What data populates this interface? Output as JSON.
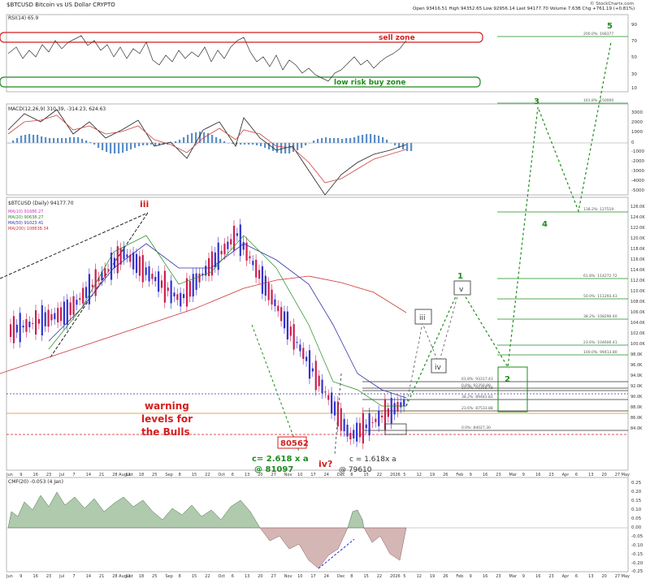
{
  "header": {
    "symbol": "$BTCUSD Bitcoin vs US Dollar  CRYPTO",
    "stats": "Open 93416.51  High 94352.65  Low 92956.14  Last 94177.70  Volume 7.63B  Chg +761.19 (+0.81%)",
    "watermark": "© StockCharts.com"
  },
  "rsi_panel": {
    "label": "RSI(14) 65.9",
    "ticks": [
      "90",
      "70",
      "50",
      "30",
      "10"
    ],
    "sell_zone": "sell zone",
    "buy_zone": "low risk buy zone"
  },
  "macd_panel": {
    "label": "MACD(12,26,9) 310.39, -314.23, 624.63",
    "ticks": [
      "3000",
      "2000",
      "1000",
      "0",
      "-1000",
      "-2000",
      "-3000",
      "-4000",
      "-5000"
    ]
  },
  "price_panel": {
    "label": "$BTCUSD (Daily) 94177.70",
    "ma_legend": [
      {
        "text": "MA(10) 91686.27",
        "color": "#cc33cc"
      },
      {
        "text": "MA(20) 90638.27",
        "color": "#228b22"
      },
      {
        "text": "MA(50) 91023.41",
        "color": "#3333aa"
      },
      {
        "text": "MA(200) 108838.34",
        "color": "#cc3333"
      }
    ],
    "ticks": [
      "126.0K",
      "124.0K",
      "122.0K",
      "120.0K",
      "118.0K",
      "116.0K",
      "114.0K",
      "112.0K",
      "110.0K",
      "108.0K",
      "106.0K",
      "104.0K",
      "102.0K",
      "100.0K",
      "98.0K",
      "96.0K",
      "94.0K",
      "92.0K",
      "90.0K",
      "88.0K",
      "86.0K",
      "84.0K"
    ],
    "fib_levels": [
      {
        "text": "200.0%: 168377",
        "y": 45
      },
      {
        "text": "161.8%: 150000",
        "y": 127
      },
      {
        "text": "138.2%: 127519",
        "y": 261
      },
      {
        "text": "61.8%: 114272.72",
        "y": 343
      },
      {
        "text": "50.0%: 111293.43",
        "y": 368
      },
      {
        "text": "38.2%: 108290.40",
        "y": 393
      },
      {
        "text": "23.6%: 104600.41",
        "y": 425
      },
      {
        "text": "100.0%: 99413.80",
        "y": 437
      },
      {
        "text": "61.8%: 93317.43",
        "y": 470
      },
      {
        "text": "0.0%: 92350.88",
        "y": 478
      },
      {
        "text": "50.0%: 91358.48",
        "y": 481
      },
      {
        "text": "38.2%: 89481.82",
        "y": 492
      },
      {
        "text": "23.6%: 87533.88",
        "y": 506
      },
      {
        "text": "0.0%: 84027.30",
        "y": 530
      }
    ],
    "warning_text": [
      "warning",
      "levels for",
      "the Bulls"
    ],
    "low_box": "80562",
    "c_target_left": "c= 2.618 x a",
    "c_target_left_price": "@ 81097",
    "c_target_right": "c = 1.618x a",
    "c_target_right_price": "@ 79610",
    "iv_label": "iv?"
  },
  "wave_labels": {
    "major_iii": "iii",
    "projection": [
      "1",
      "2",
      "3",
      "4",
      "5"
    ],
    "projection_sub": [
      "iii",
      "iv",
      "v"
    ]
  },
  "cmf_panel": {
    "label": "CMF(20) -0.053 (4 Jan)",
    "ticks": [
      "0.25",
      "0.20",
      "0.15",
      "0.10",
      "0.05",
      "0.00",
      "-0.05",
      "-0.10",
      "-0.15",
      "-0.20",
      "-0.25"
    ]
  },
  "x_axis": {
    "labels": [
      "Jun",
      "9",
      "16",
      "23",
      "Jul",
      "7",
      "14",
      "21",
      "28 August",
      "11",
      "18",
      "25",
      "Sep",
      "8",
      "15",
      "22",
      "Oct",
      "6",
      "13",
      "20",
      "27",
      "Nov",
      "10",
      "17",
      "24",
      "Dec",
      "8",
      "15",
      "22",
      "2026",
      "5",
      "12",
      "19",
      "26",
      "Feb",
      "9",
      "16",
      "23",
      "Mar",
      "9",
      "16",
      "23",
      "Apr",
      "6",
      "13",
      "20",
      "27 May"
    ]
  },
  "colors": {
    "up": "#3333cc",
    "down": "#cc1f4f",
    "green": "#1e8c1e",
    "red": "#d41f1f",
    "orange": "#d9901a",
    "purple": "#7d2bbf",
    "cmf_pos": "#8db38a",
    "cmf_neg": "#c9a4a2"
  },
  "chart_data": {
    "type": "line",
    "title": "$BTCUSD Bitcoin vs US Dollar",
    "y_unit": "USD",
    "ylim": [
      83000,
      127000
    ],
    "x": [
      "Jun",
      "Jul",
      "Aug",
      "Sep",
      "Oct",
      "Nov",
      "Dec",
      "2026"
    ],
    "series": [
      {
        "name": "$BTCUSD (Daily)",
        "values": [
          105500,
          108500,
          118000,
          110500,
          121000,
          104500,
          88500,
          94177.7
        ]
      }
    ]
  }
}
